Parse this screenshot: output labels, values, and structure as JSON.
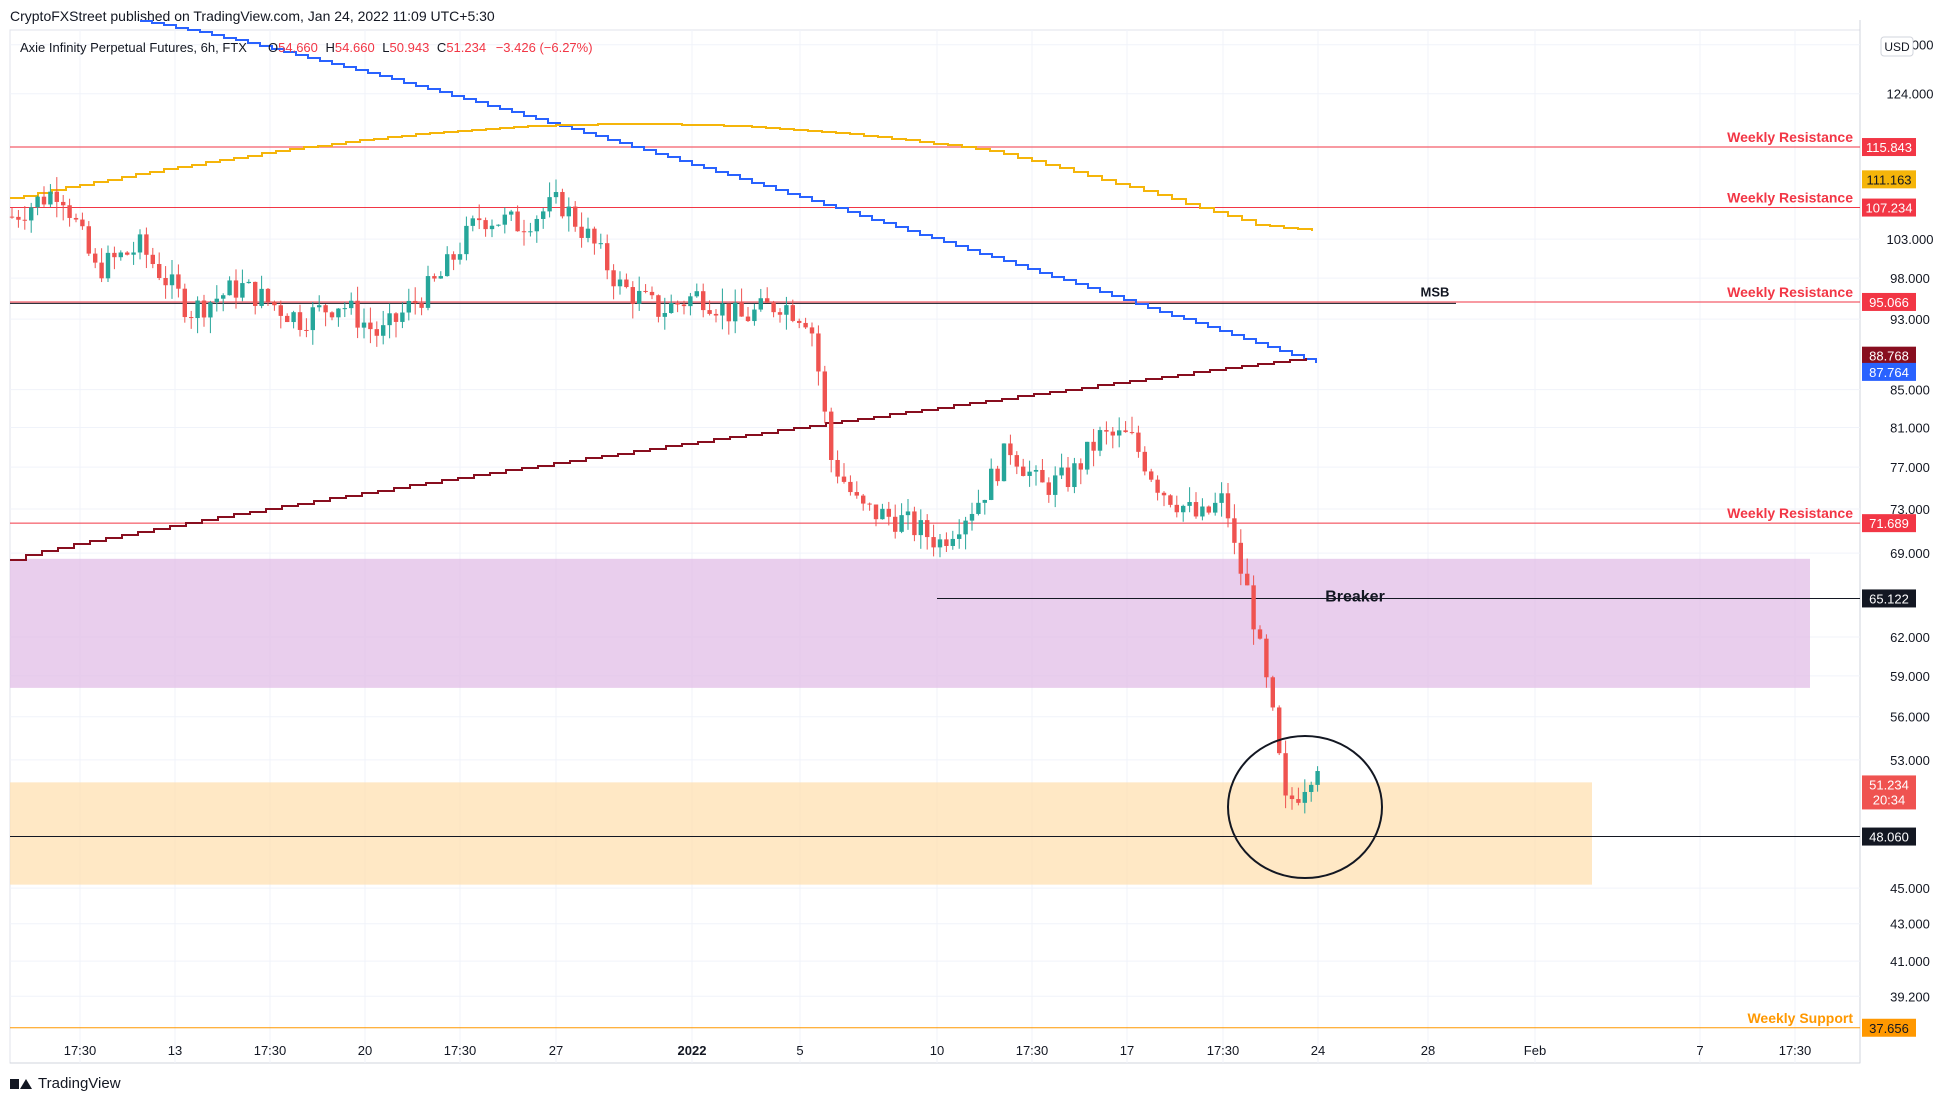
{
  "header": {
    "published_by": "CryptoFXStreet published on TradingView.com, Jan 24, 2022 11:09 UTC+5:30"
  },
  "legend": {
    "symbol": "Axie Infinity Perpetual Futures, 6h, FTX",
    "open_label": "O",
    "open": "54.660",
    "high_label": "H",
    "high": "54.660",
    "low_label": "L",
    "low": "50.943",
    "close_label": "C",
    "close": "51.234",
    "change": "−3.426 (−6.27%)"
  },
  "footer": {
    "brand": "TradingView"
  },
  "colors": {
    "up": "#26a69a",
    "down": "#ef5350",
    "resistance": "#f23645",
    "support": "#ff9800",
    "sma_blue": "#2962ff",
    "sma_gold": "#f5b50a",
    "sma_maroon": "#880e1f",
    "breaker_zone": "#e1bee7",
    "demand_zone": "#ffe0b2"
  },
  "chart_data": {
    "type": "candlestick",
    "timeframe": "6h",
    "currency": "USD",
    "price_scale": "log",
    "ylim": [
      37.0,
      132.0
    ],
    "x_tick_labels": [
      "17:30",
      "13",
      "17:30",
      "20",
      "17:30",
      "27",
      "2022",
      "5",
      "10",
      "17:30",
      "17",
      "17:30",
      "24",
      "28",
      "Feb",
      "7",
      "17:30"
    ],
    "y_tick_labels": [
      "132.000",
      "124.000",
      "103.000",
      "98.000",
      "93.000",
      "85.000",
      "81.000",
      "77.000",
      "73.000",
      "69.000",
      "62.000",
      "59.000",
      "56.000",
      "53.000",
      "45.000",
      "43.000",
      "41.000",
      "39.200"
    ],
    "last_price": "51.234",
    "countdown": "20:34",
    "horizontal_levels": [
      {
        "label": "Weekly Resistance",
        "price": 115.843,
        "badge": "115.843"
      },
      {
        "label": "Weekly Resistance",
        "price": 107.234,
        "badge": "107.234"
      },
      {
        "label": "Weekly Resistance",
        "price": 95.066,
        "badge": "95.066"
      },
      {
        "label": "Weekly Resistance",
        "price": 71.689,
        "badge": "71.689"
      },
      {
        "label": "Weekly Support",
        "price": 37.656,
        "badge": "37.656"
      }
    ],
    "black_levels": [
      {
        "label": "MSB",
        "price": 94.9
      },
      {
        "label": "",
        "price": 65.122,
        "badge": "65.122"
      },
      {
        "label": "",
        "price": 48.06,
        "badge": "48.060"
      }
    ],
    "zones": [
      {
        "label": "Breaker",
        "top": 68.5,
        "bottom": 58.1
      },
      {
        "label": "",
        "top": 51.5,
        "bottom": 45.2
      }
    ],
    "moving_averages": [
      {
        "color": "#2962ff",
        "last": "87.764"
      },
      {
        "color": "#f5b50a",
        "last": "111.163"
      },
      {
        "color": "#880e1f",
        "last": "88.768"
      }
    ]
  }
}
